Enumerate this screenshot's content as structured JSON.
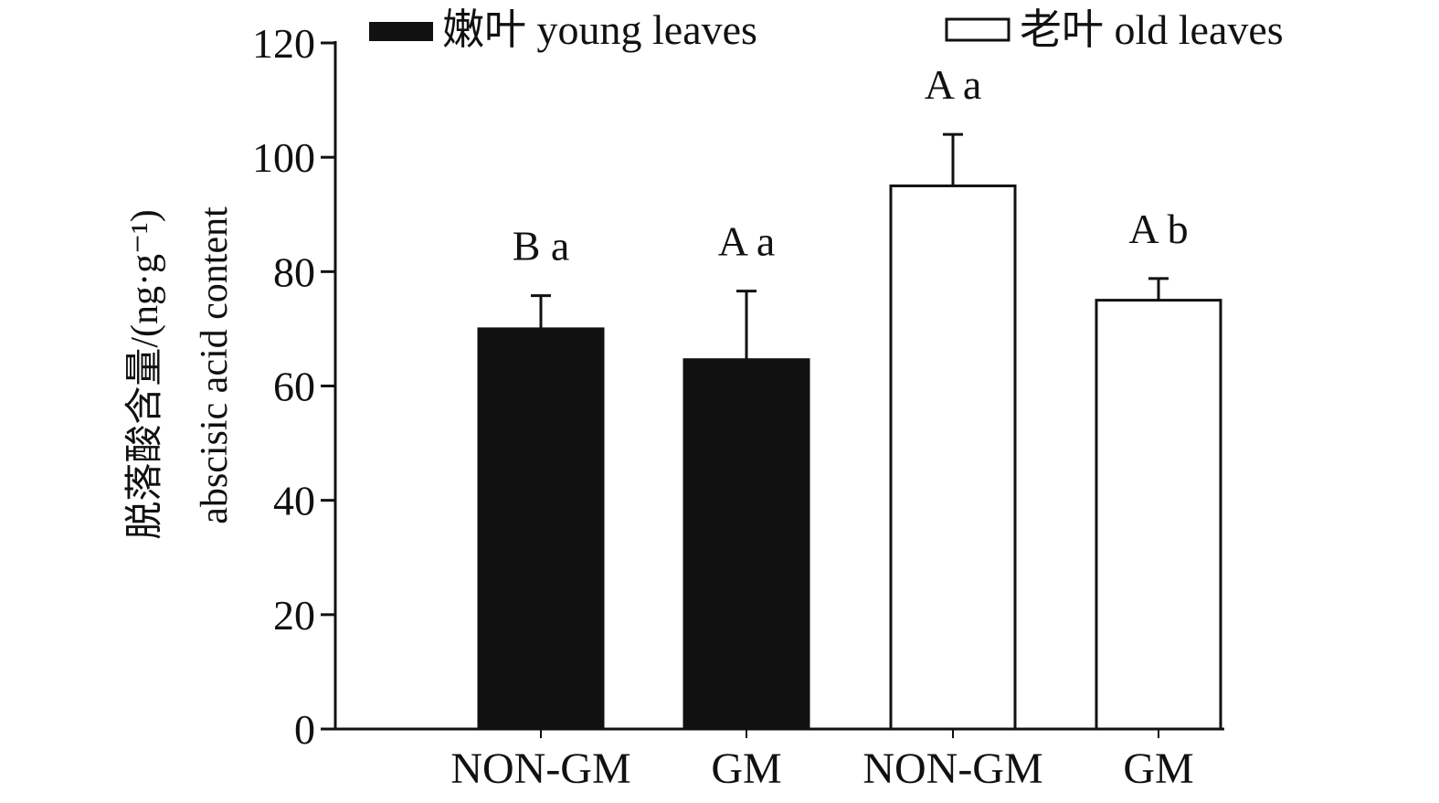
{
  "chart_data": {
    "type": "bar",
    "ylim": [
      0,
      120
    ],
    "yticks": [
      "0",
      "20",
      "40",
      "60",
      "80",
      "100",
      "120"
    ],
    "ylabel_line1": "脱落酸含量/(ng·g⁻¹)",
    "ylabel_line2": "abscisic acid content",
    "categories": [
      "NON-GM",
      "GM",
      "NON-GM",
      "GM"
    ],
    "bars": [
      {
        "series": "young",
        "category": "NON-GM",
        "value": 70,
        "error": 5.8,
        "annotation": "B a"
      },
      {
        "series": "young",
        "category": "GM",
        "value": 64.6,
        "error": 12,
        "annotation": "A a"
      },
      {
        "series": "old",
        "category": "NON-GM",
        "value": 95,
        "error": 9,
        "annotation": "A a"
      },
      {
        "series": "old",
        "category": "GM",
        "value": 75,
        "error": 3.8,
        "annotation": "A b"
      }
    ],
    "series": [
      {
        "key": "young",
        "name": "嫩叶 young leaves",
        "fill": "#111111"
      },
      {
        "key": "old",
        "name": "老叶 old leaves",
        "fill": "#ffffff"
      }
    ],
    "legend_position": "top",
    "grid": false
  }
}
